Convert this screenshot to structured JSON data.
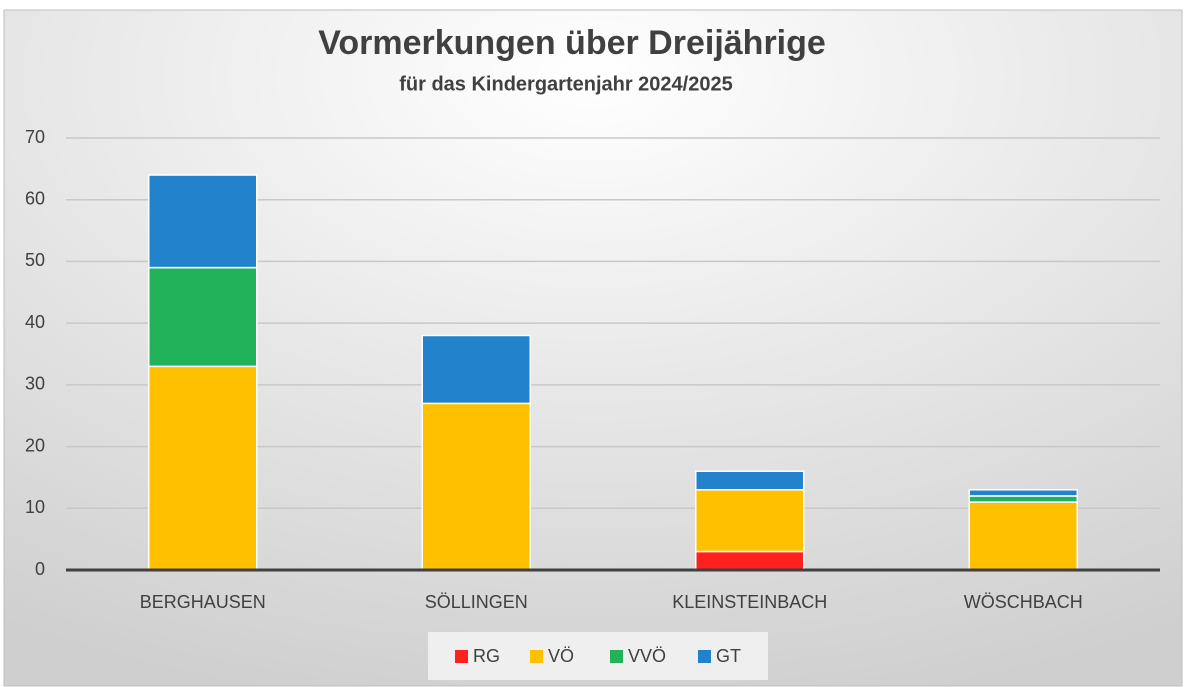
{
  "chart_data": {
    "type": "stacked_bar",
    "title": "Vormerkungen über Dreijährige",
    "subtitle": "für das Kindergartenjahr 2024/2025",
    "categories": [
      "BERGHAUSEN",
      "SÖLLINGEN",
      "KLEINSTEINBACH",
      "WÖSCHBACH"
    ],
    "series": [
      {
        "name": "RG",
        "color": "#ff2020",
        "values": [
          0,
          0,
          3,
          0
        ]
      },
      {
        "name": "VÖ",
        "color": "#ffc000",
        "values": [
          33,
          27,
          10,
          11
        ]
      },
      {
        "name": "VVÖ",
        "color": "#22b35a",
        "values": [
          16,
          0,
          0,
          1
        ]
      },
      {
        "name": "GT",
        "color": "#2382cc",
        "values": [
          15,
          11,
          3,
          1
        ]
      }
    ],
    "ylim": [
      0,
      70
    ],
    "yticks": [
      0,
      10,
      20,
      30,
      40,
      50,
      60,
      70
    ],
    "grid": true,
    "legend": "bottom"
  }
}
